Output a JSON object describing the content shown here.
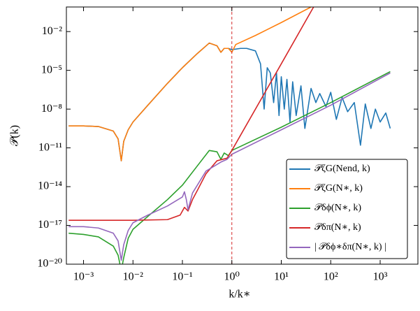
{
  "chart_data": {
    "type": "line",
    "xlabel": "k/k∗",
    "ylabel": "𝒫(k)",
    "log_x": true,
    "log_y": true,
    "xlim": [
      0.00045,
      5800
    ],
    "ylim": [
      1e-20,
      0.8
    ],
    "xticks": [
      {
        "value": 0.001,
        "label": "10⁻³"
      },
      {
        "value": 0.01,
        "label": "10⁻²"
      },
      {
        "value": 0.1,
        "label": "10⁻¹"
      },
      {
        "value": 1,
        "label": "10⁰"
      },
      {
        "value": 10,
        "label": "10¹"
      },
      {
        "value": 100,
        "label": "10²"
      },
      {
        "value": 1000,
        "label": "10³"
      }
    ],
    "yticks": [
      {
        "value": 1e-20,
        "label": "10⁻²⁰"
      },
      {
        "value": 1e-17,
        "label": "10⁻¹⁷"
      },
      {
        "value": 1e-14,
        "label": "10⁻¹⁴"
      },
      {
        "value": 1e-11,
        "label": "10⁻¹¹"
      },
      {
        "value": 1e-08,
        "label": "10⁻⁸"
      },
      {
        "value": 1e-05,
        "label": "10⁻⁵"
      },
      {
        "value": 0.01,
        "label": "10⁻²"
      }
    ],
    "vline": {
      "x": 1,
      "color": "#d62728"
    },
    "legend": "lower right",
    "series": [
      {
        "name": "𝒫ζG(Nend, k)",
        "color": "#1f77b4",
        "x": [
          0.0005,
          0.001,
          0.002,
          0.004,
          0.005,
          0.0058,
          0.0065,
          0.008,
          0.01,
          0.02,
          0.05,
          0.1,
          0.2,
          0.35,
          0.5,
          0.6,
          0.7,
          0.85,
          1,
          1.5,
          2,
          3,
          3.8,
          4.5,
          5.2,
          6,
          7,
          8,
          9,
          10,
          11.5,
          13,
          15,
          17,
          20,
          25,
          30,
          40,
          50,
          60,
          80,
          100,
          130,
          170,
          220,
          300,
          400,
          500,
          650,
          800,
          1000,
          1300,
          1600
        ],
        "values": [
          5e-10,
          5e-10,
          4.5e-10,
          2e-10,
          5e-11,
          1e-12,
          3.2e-11,
          2.5e-10,
          1e-09,
          2e-08,
          1e-06,
          1.6e-05,
          0.0002,
          0.0013,
          0.0008,
          0.00025,
          0.0005,
          0.0005,
          0.0004,
          0.0005,
          0.0005,
          0.00032,
          3.2e-05,
          1e-08,
          1.6e-05,
          6.3e-06,
          3.2e-08,
          6.3e-06,
          3.2e-09,
          3.2e-06,
          1e-08,
          2e-06,
          1e-09,
          1.3e-06,
          3.2e-09,
          6.3e-07,
          3.2e-10,
          4e-07,
          3.2e-08,
          1.6e-07,
          1.6e-08,
          2e-07,
          1.6e-09,
          8e-08,
          6.3e-09,
          3.2e-08,
          1.6e-11,
          2.5e-08,
          3.2e-10,
          1e-08,
          1e-09,
          5e-09,
          3.2e-10
        ]
      },
      {
        "name": "𝒫ζG(N∗, k)",
        "color": "#ff7f0e",
        "x": [
          0.0005,
          0.001,
          0.002,
          0.004,
          0.005,
          0.0058,
          0.0065,
          0.008,
          0.01,
          0.02,
          0.05,
          0.1,
          0.2,
          0.35,
          0.5,
          0.6,
          0.7,
          0.85,
          1,
          1.2,
          3,
          10,
          40
        ],
        "values": [
          5e-10,
          5e-10,
          4.5e-10,
          2e-10,
          5e-11,
          1e-12,
          3.2e-11,
          2.5e-10,
          1e-09,
          2e-08,
          1e-06,
          1.6e-05,
          0.0002,
          0.0013,
          0.0008,
          0.00025,
          0.0005,
          0.0005,
          0.00025,
          0.001,
          0.005,
          0.05,
          0.8
        ]
      },
      {
        "name": "𝒫δϕ(N∗, k)",
        "color": "#2ca02c",
        "x": [
          0.0005,
          0.001,
          0.002,
          0.004,
          0.005,
          0.0058,
          0.0065,
          0.008,
          0.01,
          0.02,
          0.05,
          0.1,
          0.2,
          0.35,
          0.5,
          0.6,
          0.7,
          0.85,
          1,
          10,
          100,
          1600
        ],
        "values": [
          2.5e-18,
          2e-18,
          1.3e-18,
          2.5e-19,
          5e-20,
          3.2e-21,
          3.2e-20,
          1e-18,
          5e-18,
          5e-17,
          1e-15,
          1.3e-14,
          4e-13,
          6.3e-12,
          5e-12,
          1.3e-12,
          4e-12,
          2.5e-12,
          6.3e-12,
          4e-10,
          3.2e-08,
          8e-06
        ]
      },
      {
        "name": "𝒫δπ(N∗, k)",
        "color": "#d62728",
        "x": [
          0.0005,
          0.01,
          0.05,
          0.09,
          0.11,
          0.13,
          0.16,
          0.2,
          0.3,
          0.5,
          0.8,
          1,
          10,
          45
        ],
        "values": [
          2.5e-17,
          2.5e-17,
          2.8e-17,
          6.3e-17,
          2.5e-16,
          1.3e-16,
          1e-15,
          5e-15,
          1e-13,
          1e-12,
          1.6e-12,
          6.3e-12,
          3.2e-05,
          0.8
        ]
      },
      {
        "name": "| 𝒫δϕ∗δπ(N∗, k) |",
        "color": "#9467bd",
        "x": [
          0.0005,
          0.001,
          0.002,
          0.004,
          0.005,
          0.0058,
          0.0065,
          0.008,
          0.01,
          0.02,
          0.05,
          0.1,
          0.11,
          0.12,
          0.13,
          0.16,
          0.3,
          0.6,
          0.8,
          1,
          10,
          100,
          1600
        ],
        "values": [
          8e-18,
          8e-18,
          6.3e-18,
          2.5e-18,
          6.3e-19,
          2e-20,
          3.2e-19,
          4e-18,
          1.6e-17,
          6.3e-17,
          3.2e-16,
          1.6e-15,
          4e-15,
          1e-15,
          1.6e-16,
          3.2e-15,
          1.6e-13,
          8e-13,
          1.3e-12,
          3.2e-12,
          2.5e-10,
          2e-08,
          6.3e-06
        ]
      }
    ]
  }
}
